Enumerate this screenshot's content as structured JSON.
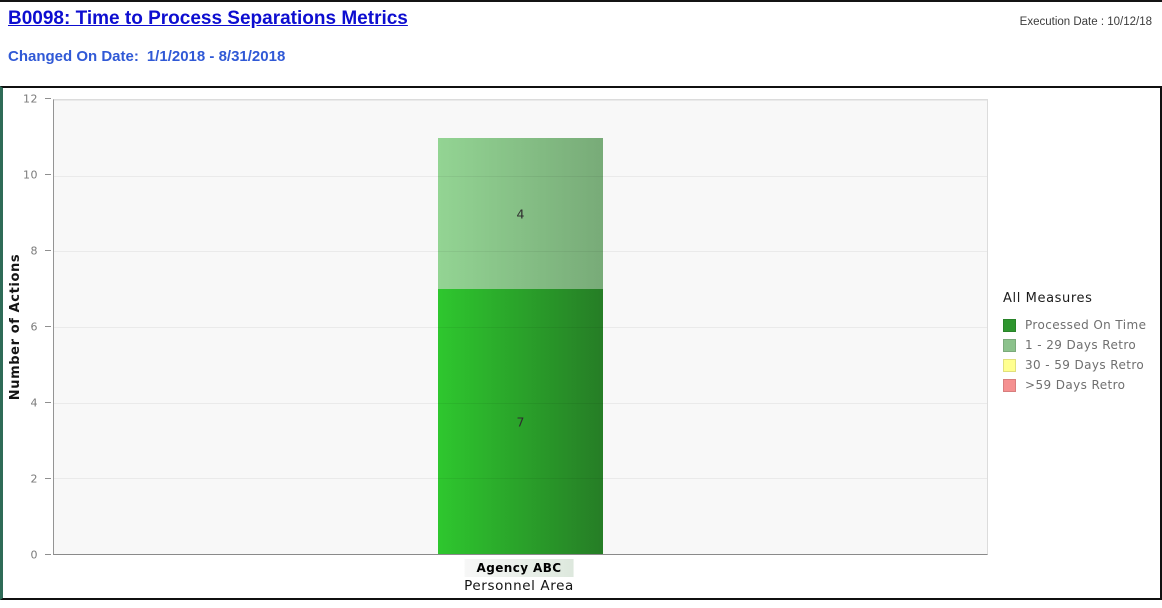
{
  "header": {
    "title": "B0098: Time to Process Separations Metrics",
    "changed_on_label": "Changed On Date:",
    "changed_on_value": "1/1/2018  - 8/31/2018",
    "execution_date": "Execution Date : 10/12/18"
  },
  "chart_data": {
    "type": "bar",
    "stacked": true,
    "categories": [
      "Agency ABC"
    ],
    "series": [
      {
        "name": "Processed On Time",
        "values": [
          7
        ],
        "color": "#2f962f",
        "gradient": [
          "#2ec72e",
          "#267d26"
        ]
      },
      {
        "name": "1 - 29 Days Retro",
        "values": [
          4
        ],
        "color": "#8cc28c",
        "gradient": [
          "#93d493",
          "#78ab78"
        ]
      },
      {
        "name": "30 - 59 Days Retro",
        "values": [
          0
        ],
        "color": "#ffff8f",
        "gradient": [
          "#ffff8f",
          "#ffff8f"
        ]
      },
      {
        "name": ">59 Days Retro",
        "values": [
          0
        ],
        "color": "#f59090",
        "gradient": [
          "#f59090",
          "#f59090"
        ]
      }
    ],
    "xlabel": "Personnel Area",
    "ylabel": "Number of Actions",
    "ylim": [
      0,
      12
    ],
    "yticks": [
      0,
      2,
      4,
      6,
      8,
      10,
      12
    ],
    "grid": true,
    "legend_title": "All Measures",
    "legend_position": "right",
    "value_labels_shown": [
      7,
      4
    ]
  }
}
